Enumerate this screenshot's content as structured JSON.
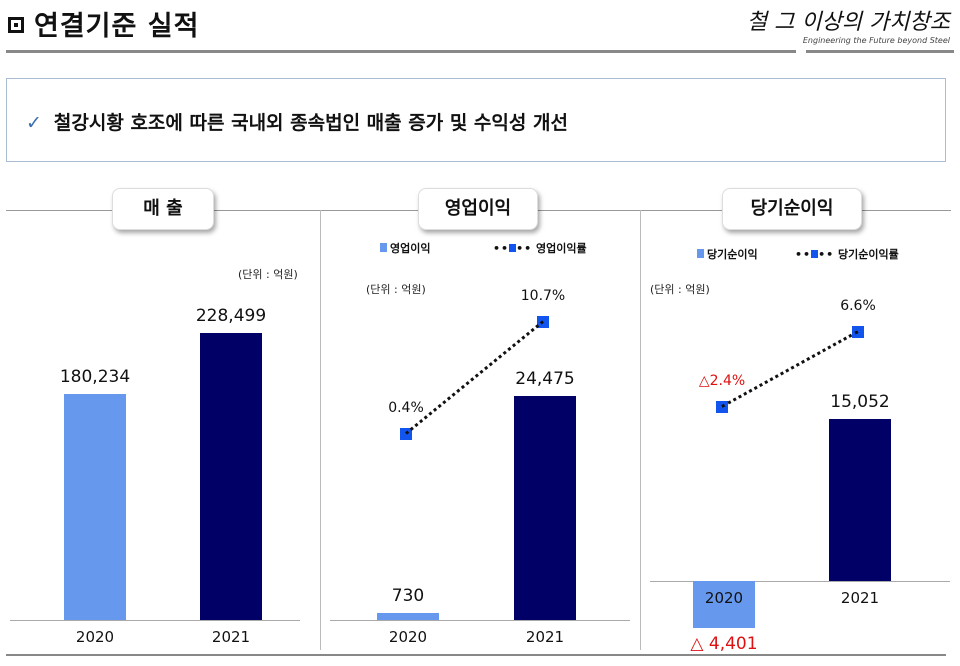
{
  "header": {
    "title": "연결기준 실적",
    "logo_text": "철 그 이상의 가치창조",
    "logo_tagline": "Engineering the Future beyond Steel"
  },
  "summary": {
    "check_icon": "✓",
    "text": "철강시황 호조에 따른 국내외 종속법인 매출 증가 및 수익성 개선"
  },
  "colors": {
    "bar2020": "#6699ee",
    "bar2021": "#000066",
    "line": "#1155ee",
    "negative": "#dd1111"
  },
  "chart_data": [
    {
      "type": "bar",
      "title": "매 출",
      "unit": "(단위 : 억원)",
      "categories": [
        "2020",
        "2021"
      ],
      "values": [
        180234,
        228499
      ],
      "value_labels": [
        "180,234",
        "228,499"
      ]
    },
    {
      "type": "bar+line",
      "title": "영업이익",
      "unit": "(단위 : 억원)",
      "legend": [
        "영업이익",
        "영업이익률"
      ],
      "categories": [
        "2020",
        "2021"
      ],
      "values": [
        730,
        24475
      ],
      "value_labels": [
        "730",
        "24,475"
      ],
      "rates": [
        0.4,
        10.7
      ],
      "rate_labels": [
        "0.4%",
        "10.7%"
      ]
    },
    {
      "type": "bar+line",
      "title": "당기순이익",
      "unit": "(단위 : 억원)",
      "legend": [
        "당기순이익",
        "당기순이익률"
      ],
      "categories": [
        "2020",
        "2021"
      ],
      "values": [
        -4401,
        15052
      ],
      "value_labels": [
        "△ 4,401",
        "15,052"
      ],
      "rates": [
        -2.4,
        6.6
      ],
      "rate_labels": [
        "△2.4%",
        "6.6%"
      ]
    }
  ]
}
